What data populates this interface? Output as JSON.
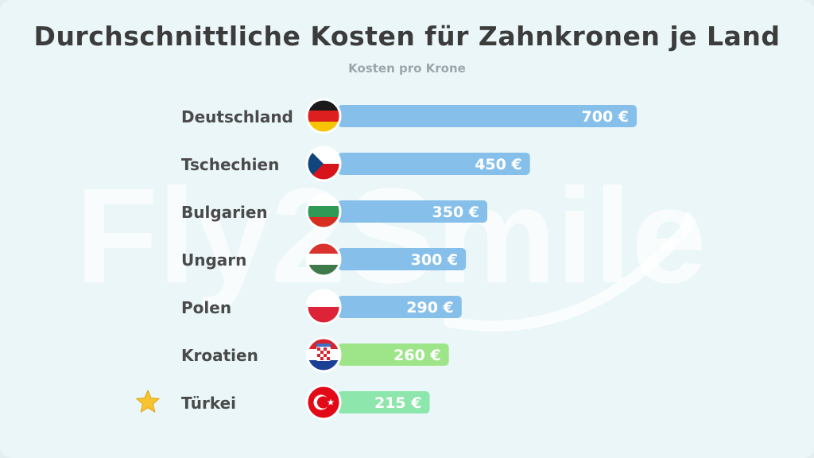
{
  "title": "Durchschnittliche Kosten für Zahnkronen je Land",
  "subtitle": "Kosten pro Krone",
  "watermark": "Fly2Smile",
  "highlight_icon": "star-icon",
  "colors": {
    "bar_default": "#86c0ea",
    "bar_green": "#9ee58a",
    "bar_green_highlight": "#8de6ab",
    "label_text": "#4a4a4a",
    "value_text": "#ffffff",
    "star": "#f7c331"
  },
  "chart_data": {
    "type": "bar",
    "orientation": "horizontal",
    "title": "Durchschnittliche Kosten für Zahnkronen je Land",
    "subtitle": "Kosten pro Krone",
    "categories": [
      "Deutschland",
      "Tschechien",
      "Bulgarien",
      "Ungarn",
      "Polen",
      "Kroatien",
      "Türkei"
    ],
    "values": [
      700,
      450,
      350,
      300,
      290,
      260,
      215
    ],
    "value_labels": [
      "700 €",
      "450 €",
      "350 €",
      "300 €",
      "290 €",
      "260 €",
      "215 €"
    ],
    "unit": "€",
    "flags": [
      "germany-flag-icon",
      "czechia-flag-icon",
      "bulgaria-flag-icon",
      "hungary-flag-icon",
      "poland-flag-icon",
      "croatia-flag-icon",
      "turkey-flag-icon"
    ],
    "highlighted": "Türkei",
    "xlim": [
      0,
      700
    ],
    "grid": false,
    "legend": "none"
  }
}
